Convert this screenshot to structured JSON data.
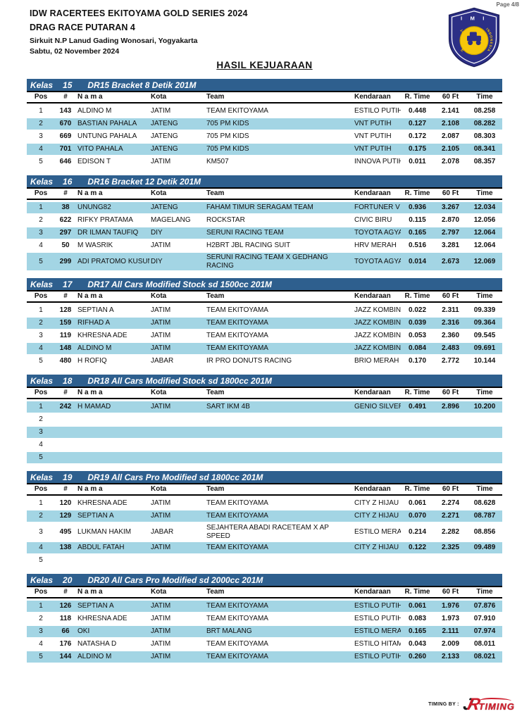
{
  "page": {
    "page_label": "Page 4/8"
  },
  "header": {
    "title_line1": "IDW RACERTEES EKITOYAMA GOLD SERIES 2024",
    "title_line2": "DRAG RACE PUTARAN 4",
    "venue": "Sirkuit N.P Lanud Gading Wonosari, Yogyakarta",
    "date": "Sabtu, 02 November 2024",
    "section_title": "HASIL KEJUARAAN",
    "imi": {
      "top": "I M I",
      "left_arc": "IKATAN MOTOR",
      "right_arc": "INDONESIA"
    }
  },
  "columns": [
    "Pos",
    "#",
    "N a m a",
    "Kota",
    "Team",
    "Kendaraan",
    "R. Time",
    "60 Ft",
    "Time"
  ],
  "colors": {
    "header_bar": "#2e5f8e",
    "row_highlight": "#a3d5e4",
    "logo_navy": "#2c2f86",
    "logo_yellow": "#f6c70a",
    "timing_red": "#cf1f2e"
  },
  "tables": [
    {
      "kelas_label": "Kelas",
      "kelas_no": "15",
      "title": "DR15 Bracket 8 Detik 201M",
      "rows": [
        {
          "pos": "1",
          "num": "143",
          "nama": "ALDINO M",
          "kota": "JATIM",
          "team": "TEAM EKITOYAMA",
          "kend": "ESTILO PUTIH",
          "rtime": "0.448",
          "sixty": "2.141",
          "time": "08.258",
          "hl": false
        },
        {
          "pos": "2",
          "num": "670",
          "nama": "BASTIAN PAHALA",
          "kota": "JATENG",
          "team": "705 PM KIDS",
          "kend": "VNT PUTIH",
          "rtime": "0.127",
          "sixty": "2.108",
          "time": "08.282",
          "hl": true
        },
        {
          "pos": "3",
          "num": "669",
          "nama": "UNTUNG PAHALA",
          "kota": "JATENG",
          "team": "705 PM KIDS",
          "kend": "VNT PUTIH",
          "rtime": "0.172",
          "sixty": "2.087",
          "time": "08.303",
          "hl": false
        },
        {
          "pos": "4",
          "num": "701",
          "nama": "VITO PAHALA",
          "kota": "JATENG",
          "team": "705 PM KIDS",
          "kend": "VNT PUTIH",
          "rtime": "0.175",
          "sixty": "2.105",
          "time": "08.341",
          "hl": true
        },
        {
          "pos": "5",
          "num": "646",
          "nama": "EDISON T",
          "kota": "JATIM",
          "team": "KM507",
          "kend": "INNOVA PUTIH",
          "rtime": "0.011",
          "sixty": "2.078",
          "time": "08.357",
          "hl": false
        }
      ]
    },
    {
      "kelas_label": "Kelas",
      "kelas_no": "16",
      "title": "DR16 Bracket 12 Detik 201M",
      "rows": [
        {
          "pos": "1",
          "num": "38",
          "nama": "UNUNG82",
          "kota": "JATENG",
          "team": "FAHAM TIMUR SERAGAM TEAM",
          "kend": "FORTUNER V",
          "rtime": "0.936",
          "sixty": "3.267",
          "time": "12.034",
          "hl": true
        },
        {
          "pos": "2",
          "num": "622",
          "nama": "RIFKY PRATAMA",
          "kota": "MAGELANG",
          "team": "ROCKSTAR",
          "kend": "CIVIC BIRU",
          "rtime": "0.115",
          "sixty": "2.870",
          "time": "12.056",
          "hl": false
        },
        {
          "pos": "3",
          "num": "297",
          "nama": "DR ILMAN TAUFIQ",
          "kota": "DIY",
          "team": "SERUNI RACING TEAM",
          "kend": "TOYOTA AGYA",
          "rtime": "0.165",
          "sixty": "2.797",
          "time": "12.064",
          "hl": true
        },
        {
          "pos": "4",
          "num": "50",
          "nama": "M WASRIK",
          "kota": "JATIM",
          "team": "H2BRT JBL RACING SUIT",
          "kend": "HRV MERAH",
          "rtime": "0.516",
          "sixty": "3.281",
          "time": "12.064",
          "hl": false
        },
        {
          "pos": "5",
          "num": "299",
          "nama": "ADI PRATOMO KUSUMA",
          "kota": "DIY",
          "team": "SERUNI RACING TEAM X GEDHANG RACING",
          "kend": "TOYOTA AGYA",
          "rtime": "0.014",
          "sixty": "2.673",
          "time": "12.069",
          "hl": true
        }
      ]
    },
    {
      "kelas_label": "Kelas",
      "kelas_no": "17",
      "title": "DR17 All Cars Modified Stock sd 1500cc 201M",
      "rows": [
        {
          "pos": "1",
          "num": "128",
          "nama": "SEPTIAN A",
          "kota": "JATIM",
          "team": "TEAM EKITOYAMA",
          "kend": "JAZZ KOMBIN",
          "rtime": "0.022",
          "sixty": "2.311",
          "time": "09.339",
          "hl": false
        },
        {
          "pos": "2",
          "num": "159",
          "nama": "RIFHAD A",
          "kota": "JATIM",
          "team": "TEAM EKITOYAMA",
          "kend": "JAZZ KOMBIN",
          "rtime": "0.039",
          "sixty": "2.316",
          "time": "09.364",
          "hl": true
        },
        {
          "pos": "3",
          "num": "119",
          "nama": "KHRESNA ADE",
          "kota": "JATIM",
          "team": "TEAM EKITOYAMA",
          "kend": "JAZZ KOMBIN",
          "rtime": "0.053",
          "sixty": "2.360",
          "time": "09.545",
          "hl": false
        },
        {
          "pos": "4",
          "num": "148",
          "nama": "ALDINO M",
          "kota": "JATIM",
          "team": "TEAM EKITOYAMA",
          "kend": "JAZZ KOMBIN",
          "rtime": "0.084",
          "sixty": "2.483",
          "time": "09.691",
          "hl": true
        },
        {
          "pos": "5",
          "num": "480",
          "nama": "H ROFIQ",
          "kota": "JABAR",
          "team": "IR PRO DONUTS RACING",
          "kend": "BRIO MERAH",
          "rtime": "0.170",
          "sixty": "2.772",
          "time": "10.144",
          "hl": false
        }
      ]
    },
    {
      "kelas_label": "Kelas",
      "kelas_no": "18",
      "title": "DR18 All Cars Modified Stock sd 1800cc 201M",
      "rows": [
        {
          "pos": "1",
          "num": "242",
          "nama": "H MAMAD",
          "kota": "JATIM",
          "team": "SART IKM 4B",
          "kend": "GENIO SILVER",
          "rtime": "0.491",
          "sixty": "2.896",
          "time": "10.200",
          "hl": true
        },
        {
          "pos": "2",
          "num": "",
          "nama": "",
          "kota": "",
          "team": "",
          "kend": "",
          "rtime": "",
          "sixty": "",
          "time": "",
          "hl": false
        },
        {
          "pos": "3",
          "num": "",
          "nama": "",
          "kota": "",
          "team": "",
          "kend": "",
          "rtime": "",
          "sixty": "",
          "time": "",
          "hl": true
        },
        {
          "pos": "4",
          "num": "",
          "nama": "",
          "kota": "",
          "team": "",
          "kend": "",
          "rtime": "",
          "sixty": "",
          "time": "",
          "hl": false
        },
        {
          "pos": "5",
          "num": "",
          "nama": "",
          "kota": "",
          "team": "",
          "kend": "",
          "rtime": "",
          "sixty": "",
          "time": "",
          "hl": true
        }
      ]
    },
    {
      "kelas_label": "Kelas",
      "kelas_no": "19",
      "title": "DR19 All Cars Pro Modified sd 1800cc 201M",
      "rows": [
        {
          "pos": "1",
          "num": "120",
          "nama": "KHRESNA ADE",
          "kota": "JATIM",
          "team": "TEAM EKITOYAMA",
          "kend": "CITY Z HIJAU",
          "rtime": "0.061",
          "sixty": "2.274",
          "time": "08.628",
          "hl": false
        },
        {
          "pos": "2",
          "num": "129",
          "nama": "SEPTIAN A",
          "kota": "JATIM",
          "team": "TEAM EKITOYAMA",
          "kend": "CITY Z HIJAU",
          "rtime": "0.070",
          "sixty": "2.271",
          "time": "08.787",
          "hl": true
        },
        {
          "pos": "3",
          "num": "495",
          "nama": "LUKMAN HAKIM",
          "kota": "JABAR",
          "team": "SEJAHTERA ABADI RACETEAM X AP SPEED",
          "kend": "ESTILO MERAH",
          "rtime": "0.214",
          "sixty": "2.282",
          "time": "08.856",
          "hl": false
        },
        {
          "pos": "4",
          "num": "138",
          "nama": "ABDUL FATAH",
          "kota": "JATIM",
          "team": "TEAM EKITOYAMA",
          "kend": "CITY Z HIJAU",
          "rtime": "0.122",
          "sixty": "2.325",
          "time": "09.489",
          "hl": true
        },
        {
          "pos": "5",
          "num": "",
          "nama": "",
          "kota": "",
          "team": "",
          "kend": "",
          "rtime": "",
          "sixty": "",
          "time": "",
          "hl": false
        }
      ]
    },
    {
      "kelas_label": "Kelas",
      "kelas_no": "20",
      "title": "DR20 All Cars Pro Modified sd 2000cc 201M",
      "rows": [
        {
          "pos": "1",
          "num": "126",
          "nama": "SEPTIAN A",
          "kota": "JATIM",
          "team": "TEAM EKITOYAMA",
          "kend": "ESTILO PUTIH",
          "rtime": "0.061",
          "sixty": "1.976",
          "time": "07.876",
          "hl": true
        },
        {
          "pos": "2",
          "num": "118",
          "nama": "KHRESNA ADE",
          "kota": "JATIM",
          "team": "TEAM EKITOYAMA",
          "kend": "ESTILO PUTIH",
          "rtime": "0.083",
          "sixty": "1.973",
          "time": "07.910",
          "hl": false
        },
        {
          "pos": "3",
          "num": "66",
          "nama": "OKI",
          "kota": "JATIM",
          "team": "BRT MALANG",
          "kend": "ESTILO MERAH",
          "rtime": "0.165",
          "sixty": "2.111",
          "time": "07.974",
          "hl": true
        },
        {
          "pos": "4",
          "num": "176",
          "nama": "NATASHA D",
          "kota": "JATIM",
          "team": "TEAM EKITOYAMA",
          "kend": "ESTILO HITAM",
          "rtime": "0.043",
          "sixty": "2.009",
          "time": "08.011",
          "hl": false
        },
        {
          "pos": "5",
          "num": "144",
          "nama": "ALDINO M",
          "kota": "JATIM",
          "team": "TEAM EKITOYAMA",
          "kend": "ESTILO PUTIH",
          "rtime": "0.260",
          "sixty": "2.133",
          "time": "08.021",
          "hl": true
        }
      ]
    }
  ],
  "footer": {
    "timing_by": "TIMING BY :",
    "logo_j": "J",
    "logo_r": "R",
    "logo_text": "TIMING"
  }
}
